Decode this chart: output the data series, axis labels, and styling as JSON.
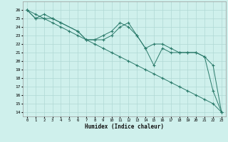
{
  "xlabel": "Humidex (Indice chaleur)",
  "ylabel": "",
  "bg_color": "#cff0ec",
  "grid_color": "#b0d8d4",
  "line_color": "#2a7a6a",
  "xlim": [
    -0.5,
    23.5
  ],
  "ylim": [
    13.5,
    27
  ],
  "xticks": [
    0,
    1,
    2,
    3,
    4,
    5,
    6,
    7,
    8,
    9,
    10,
    11,
    12,
    13,
    14,
    15,
    16,
    17,
    18,
    19,
    20,
    21,
    22,
    23
  ],
  "yticks": [
    14,
    15,
    16,
    17,
    18,
    19,
    20,
    21,
    22,
    23,
    24,
    25,
    26
  ],
  "series": [
    {
      "x": [
        0,
        1,
        2,
        3,
        4,
        5,
        6,
        7,
        8,
        9,
        10,
        11,
        12,
        13,
        14,
        15,
        16,
        17,
        18,
        19,
        20,
        21,
        22,
        23
      ],
      "y": [
        26.0,
        25.5,
        25.0,
        24.5,
        24.0,
        23.5,
        23.0,
        22.5,
        22.0,
        21.5,
        21.0,
        20.5,
        20.0,
        19.5,
        19.0,
        18.5,
        18.0,
        17.5,
        17.0,
        16.5,
        16.0,
        15.5,
        15.0,
        14.0
      ]
    },
    {
      "x": [
        0,
        1,
        2,
        3,
        4,
        6,
        7,
        8,
        9,
        10,
        11,
        12,
        13,
        14,
        15,
        16,
        17,
        18,
        19,
        20,
        21,
        22,
        23
      ],
      "y": [
        26,
        25,
        25.5,
        25,
        24.5,
        23.5,
        22.5,
        22.5,
        23,
        23.5,
        24.5,
        24,
        23,
        21.5,
        22,
        22,
        21.5,
        21,
        21,
        21,
        20.5,
        19.5,
        14.0
      ]
    },
    {
      "x": [
        0,
        1,
        2,
        3,
        4,
        6,
        7,
        8,
        9,
        10,
        11,
        12,
        13,
        14,
        15,
        16,
        17,
        18,
        19,
        20,
        21,
        22,
        23
      ],
      "y": [
        26,
        25,
        25,
        25,
        24.5,
        23.5,
        22.5,
        22.5,
        22.5,
        23,
        24,
        24.5,
        23,
        21.5,
        19.5,
        21.5,
        21,
        21,
        21,
        21,
        20.5,
        16.5,
        14.0
      ]
    }
  ]
}
